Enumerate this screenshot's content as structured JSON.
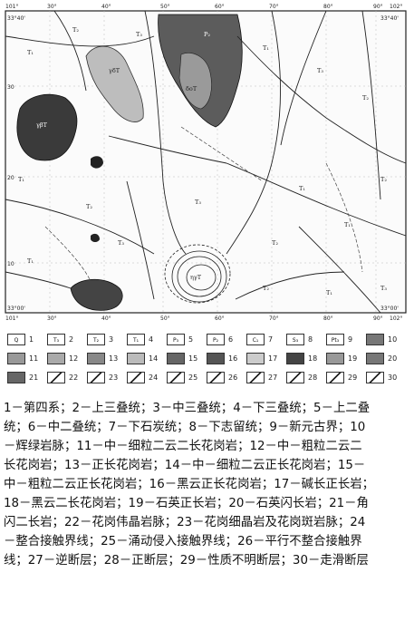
{
  "map": {
    "top_coords": [
      "101°",
      "30°",
      "40°",
      "50°",
      "60°",
      "70°",
      "80°",
      "90°",
      "102°"
    ],
    "bottom_coords": [
      "101°",
      "30°",
      "40°",
      "50°",
      "60°",
      "70°",
      "80°",
      "90°",
      "102°"
    ],
    "left_coords": [
      "33°40'",
      "30",
      "20",
      "10",
      "33°00'"
    ],
    "right_coords": [
      "33°40'",
      "33°00'"
    ],
    "units": [
      "T₁",
      "T₂",
      "T₃",
      "T₁",
      "P₂",
      "γδT",
      "γβT",
      "δoT",
      "T₃",
      "T₂",
      "T₁",
      "T₂",
      "T₃",
      "T₁",
      "T₂",
      "T₃",
      "ηγT",
      "T₁",
      "T₂",
      "T₁",
      "T₂",
      "T₁",
      "T₃"
    ]
  },
  "legend": {
    "items": [
      {
        "num": "1",
        "code": "Q"
      },
      {
        "num": "2",
        "code": "T₃"
      },
      {
        "num": "3",
        "code": "T₂"
      },
      {
        "num": "4",
        "code": "T₁"
      },
      {
        "num": "5",
        "code": "P₃"
      },
      {
        "num": "6",
        "code": "P₂"
      },
      {
        "num": "7",
        "code": "C₁"
      },
      {
        "num": "8",
        "code": "S₃"
      },
      {
        "num": "9",
        "code": "Pt₃"
      },
      {
        "num": "10",
        "code": ""
      },
      {
        "num": "11",
        "code": ""
      },
      {
        "num": "12",
        "code": ""
      },
      {
        "num": "13",
        "code": ""
      },
      {
        "num": "14",
        "code": ""
      },
      {
        "num": "15",
        "code": ""
      },
      {
        "num": "16",
        "code": ""
      },
      {
        "num": "17",
        "code": ""
      },
      {
        "num": "18",
        "code": ""
      },
      {
        "num": "19",
        "code": ""
      },
      {
        "num": "20",
        "code": ""
      },
      {
        "num": "21",
        "code": ""
      },
      {
        "num": "22",
        "code": ""
      },
      {
        "num": "23",
        "code": ""
      },
      {
        "num": "24",
        "code": ""
      },
      {
        "num": "25",
        "code": ""
      },
      {
        "num": "26",
        "code": ""
      },
      {
        "num": "27",
        "code": ""
      },
      {
        "num": "28",
        "code": ""
      },
      {
        "num": "29",
        "code": ""
      },
      {
        "num": "30",
        "code": ""
      }
    ]
  },
  "caption": {
    "lines": [
      "1－第四系；2－上三叠统；3－中三叠统；4－下三叠统；5－上二叠",
      "统；6－中二叠统；7－下石炭统；8－下志留统；9－新元古界；10",
      "－辉绿岩脉；11－中－细粒二云二长花岗岩；12－中－粗粒二云二",
      "长花岗岩；13－正长花岗岩；14－中－细粒二云正长花岗岩；15－",
      "中－粗粒二云正长花岗岩；16－黑云正长花岗岩；17－碱长正长岩；",
      "18－黑云二长花岗岩；19－石英正长岩；20－石英闪长岩；21－角",
      "闪二长岩；22－花岗伟晶岩脉；23－花岗细晶岩及花岗斑岩脉；24",
      "－整合接触界线；25－涌动侵入接触界线；26－平行不整合接触界",
      "线；27－逆断层；28－正断层；29－性质不明断层；30－走滑断层"
    ]
  },
  "colors": {
    "intrusion_dark": "#3a3a3a",
    "intrusion_mid": "#7a7a7a",
    "intrusion_light": "#b8b8b8",
    "line": "#222222"
  }
}
